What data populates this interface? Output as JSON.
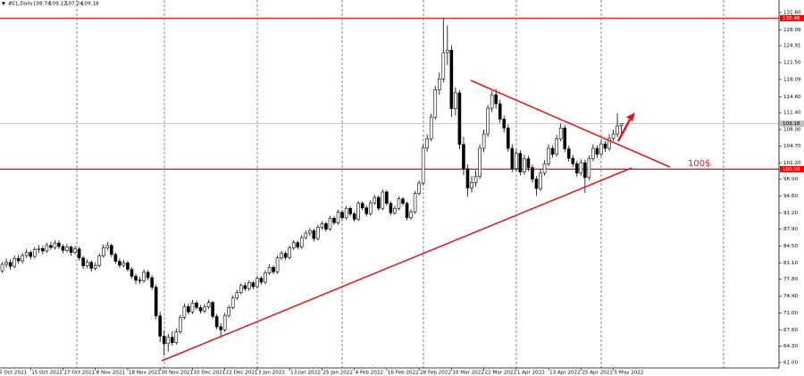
{
  "chart_data": {
    "type": "candlestick",
    "symbol": "#CL,Daily",
    "annotation": "100$",
    "up_color": "#ffffff",
    "down_color": "#000000",
    "wick_color": "#000000",
    "level_color": "#ff0000",
    "price_color": "#c0c0c0",
    "ylim": [
      59.9,
      134.12
    ],
    "yticks": [
      {
        "value": 131.6,
        "label": "131.60"
      },
      {
        "value": 128.09,
        "label": "128.09"
      },
      {
        "value": 124.91,
        "label": "124.91"
      },
      {
        "value": 121.5,
        "label": "121.50"
      },
      {
        "value": 118.09,
        "label": "118.09"
      },
      {
        "value": 114.6,
        "label": "114.60"
      },
      {
        "value": 111.4,
        "label": "111.40"
      },
      {
        "value": 108,
        "label": "108.00"
      },
      {
        "value": 104.7,
        "label": "104.70"
      },
      {
        "value": 101.2,
        "label": "101.20"
      },
      {
        "value": 98,
        "label": "98.00"
      },
      {
        "value": 94.6,
        "label": "94.60"
      },
      {
        "value": 91.2,
        "label": "91.20"
      },
      {
        "value": 87.9,
        "label": "87.90"
      },
      {
        "value": 84.5,
        "label": "84.50"
      },
      {
        "value": 81.1,
        "label": "81.10"
      },
      {
        "value": 77.8,
        "label": "77.80"
      },
      {
        "value": 74.4,
        "label": "74.40"
      },
      {
        "value": 71,
        "label": "71.00"
      },
      {
        "value": 67.6,
        "label": "67.60"
      },
      {
        "value": 64.3,
        "label": "64.30"
      },
      {
        "value": 61,
        "label": "61.00"
      }
    ],
    "levels": [
      {
        "value": 130.46,
        "label": "130.46"
      },
      {
        "value": 100,
        "label": "100.00"
      }
    ],
    "categories": [
      "5 Oct 2021",
      null,
      null,
      null,
      null,
      null,
      null,
      null,
      "15 Oct 2021",
      null,
      null,
      null,
      null,
      null,
      null,
      null,
      "27 Oct 2021",
      null,
      null,
      null,
      null,
      null,
      null,
      null,
      "8 Nov 2021",
      null,
      null,
      null,
      null,
      null,
      null,
      null,
      "18 Nov 2021",
      null,
      null,
      null,
      null,
      null,
      null,
      null,
      "30 Nov 2021",
      null,
      null,
      null,
      null,
      null,
      null,
      null,
      "10 Dec 2021",
      null,
      null,
      null,
      null,
      null,
      null,
      null,
      "22 Dec 2021",
      null,
      null,
      null,
      null,
      null,
      null,
      null,
      "3 Jan 2022",
      null,
      null,
      null,
      null,
      null,
      null,
      null,
      "13 Jan 2022",
      null,
      null,
      null,
      null,
      null,
      null,
      null,
      "25 Jan 2022",
      null,
      null,
      null,
      null,
      null,
      null,
      null,
      "4 Feb 2022",
      null,
      null,
      null,
      null,
      null,
      null,
      null,
      "16 Feb 2022",
      null,
      null,
      null,
      null,
      null,
      null,
      null,
      "28 Feb 2022",
      null,
      null,
      null,
      null,
      null,
      null,
      null,
      "10 Mar 2022",
      null,
      null,
      null,
      null,
      null,
      null,
      null,
      "22 Mar 2022",
      null,
      null,
      null,
      null,
      null,
      null,
      null,
      "1 Apr 2022",
      null,
      null,
      null,
      null,
      null,
      null,
      null,
      "13 Apr 2022",
      null,
      null,
      null,
      null,
      null,
      null,
      null,
      "25 Apr 2022",
      null,
      null,
      null,
      null,
      null,
      null,
      null,
      "5 May 2022",
      null,
      null
    ],
    "ohlc": [
      [
        79,
        80.2,
        78.4,
        79.5
      ],
      [
        79.5,
        81.3,
        79.1,
        80.8
      ],
      [
        80.8,
        82,
        80.2,
        81.2
      ],
      [
        81.2,
        81.8,
        79.7,
        80.4
      ],
      [
        80.4,
        82.6,
        80,
        82
      ],
      [
        82,
        82.7,
        80.9,
        81.5
      ],
      [
        81.5,
        83.1,
        81,
        82.6
      ],
      [
        82.6,
        83.9,
        82.1,
        83.2
      ],
      [
        83.2,
        83.6,
        81.8,
        82.4
      ],
      [
        82.4,
        84.3,
        82,
        83.8
      ],
      [
        83.8,
        84.7,
        83.1,
        84
      ],
      [
        84,
        84.5,
        82.8,
        83.5
      ],
      [
        83.5,
        85.2,
        83.1,
        84.6
      ],
      [
        84.6,
        85.3,
        83.7,
        84.2
      ],
      [
        84.2,
        85.7,
        83.8,
        85.1
      ],
      [
        85.1,
        85.6,
        83.9,
        84.4
      ],
      [
        84.4,
        84.9,
        83,
        83.6
      ],
      [
        83.6,
        84.9,
        83.2,
        84.3
      ],
      [
        84.3,
        84.6,
        82.5,
        83.2
      ],
      [
        83.2,
        84.5,
        82.8,
        83.9
      ],
      [
        83.9,
        84.3,
        81.6,
        82.1
      ],
      [
        82.1,
        82.5,
        79.9,
        80.5
      ],
      [
        80.5,
        81.8,
        80,
        81.2
      ],
      [
        81.2,
        81.6,
        79.3,
        80
      ],
      [
        80,
        81.2,
        79.5,
        80.6
      ],
      [
        80.6,
        83,
        80.2,
        82.5
      ],
      [
        82.5,
        84.8,
        82.1,
        84.1
      ],
      [
        84.1,
        85.3,
        83.6,
        84.6
      ],
      [
        84.6,
        85,
        82.3,
        82.8
      ],
      [
        82.8,
        83.2,
        80.9,
        81.4
      ],
      [
        81.4,
        82,
        80.1,
        80.6
      ],
      [
        80.6,
        81.7,
        80.2,
        81.1
      ],
      [
        81.1,
        81.5,
        79.3,
        79.8
      ],
      [
        79.8,
        80.2,
        77.9,
        78.4
      ],
      [
        78.4,
        78.9,
        76.8,
        77.6
      ],
      [
        77.6,
        78.3,
        76.9,
        77.5
      ],
      [
        77.5,
        79.8,
        77.1,
        79.2
      ],
      [
        79.2,
        79.6,
        77.6,
        78.1
      ],
      [
        78.1,
        78.6,
        75.7,
        76.2
      ],
      [
        76.2,
        76.7,
        69.8,
        70.4
      ],
      [
        70.4,
        71.2,
        65.1,
        66.3
      ],
      [
        66.3,
        67.5,
        62.4,
        64.8
      ],
      [
        64.8,
        66.8,
        63.2,
        66.1
      ],
      [
        66.1,
        67.3,
        64.4,
        65
      ],
      [
        65,
        67.9,
        64.6,
        67.2
      ],
      [
        67.2,
        70.6,
        66.8,
        70.1
      ],
      [
        70.1,
        72.9,
        69.7,
        72.3
      ],
      [
        72.3,
        72.8,
        70.7,
        71.2
      ],
      [
        71.2,
        73.6,
        70.8,
        73
      ],
      [
        73,
        73.5,
        71.6,
        72.1
      ],
      [
        72.1,
        72.6,
        70.9,
        71.4
      ],
      [
        71.4,
        72.8,
        71,
        72.2
      ],
      [
        72.2,
        73.7,
        71.8,
        73.1
      ],
      [
        73.1,
        73.4,
        69.8,
        70.3
      ],
      [
        70.3,
        70.8,
        67.7,
        68.2
      ],
      [
        68.2,
        68.9,
        66,
        67.6
      ],
      [
        67.6,
        71,
        67.2,
        70.5
      ],
      [
        70.5,
        72.6,
        70.1,
        72.1
      ],
      [
        72.1,
        74.5,
        71.7,
        74
      ],
      [
        74,
        75.7,
        73.6,
        75.1
      ],
      [
        75.1,
        77,
        74.7,
        76.5
      ],
      [
        76.5,
        77.1,
        75.4,
        75.9
      ],
      [
        75.9,
        77.6,
        75.5,
        77.1
      ],
      [
        77.1,
        77.5,
        75.8,
        76.3
      ],
      [
        76.3,
        78.5,
        75.9,
        78
      ],
      [
        78,
        78.4,
        76.7,
        77.2
      ],
      [
        77.2,
        79.6,
        76.8,
        79.1
      ],
      [
        79.1,
        80.8,
        78.7,
        80.2
      ],
      [
        80.2,
        80.6,
        78.8,
        79.3
      ],
      [
        79.3,
        82.6,
        78.9,
        82.1
      ],
      [
        82.1,
        83.5,
        81.6,
        83
      ],
      [
        83,
        83.4,
        81.7,
        82.2
      ],
      [
        82.2,
        84.6,
        81.8,
        84.1
      ],
      [
        84.1,
        85.7,
        83.7,
        85.2
      ],
      [
        85.2,
        85.6,
        83.8,
        84.3
      ],
      [
        84.3,
        86.7,
        83.9,
        86.2
      ],
      [
        86.2,
        87.6,
        85.8,
        87.1
      ],
      [
        87.1,
        88.1,
        86.5,
        87.6
      ],
      [
        87.6,
        88,
        85.4,
        86
      ],
      [
        86,
        88.8,
        85.6,
        88.3
      ],
      [
        88.3,
        89.5,
        87.8,
        89
      ],
      [
        89,
        89.4,
        87.4,
        87.9
      ],
      [
        87.9,
        90.6,
        87.5,
        90.1
      ],
      [
        90.1,
        90.5,
        88.7,
        89.2
      ],
      [
        89.2,
        91.8,
        88.8,
        91.3
      ],
      [
        91.3,
        91.7,
        89.7,
        90.2
      ],
      [
        90.2,
        92.6,
        89.8,
        92.1
      ],
      [
        92.1,
        92.5,
        90.5,
        91
      ],
      [
        91,
        91.4,
        89.4,
        89.9
      ],
      [
        89.9,
        93.6,
        89.5,
        93.1
      ],
      [
        93.1,
        93.5,
        91.7,
        92.2
      ],
      [
        92.2,
        92.6,
        90.5,
        91
      ],
      [
        91,
        93.7,
        90.6,
        93.2
      ],
      [
        93.2,
        94.8,
        92.8,
        94.3
      ],
      [
        94.3,
        94.7,
        91.6,
        92.1
      ],
      [
        92.1,
        95.9,
        91.7,
        95.4
      ],
      [
        95.4,
        95.8,
        92.6,
        93.1
      ],
      [
        93.1,
        93.5,
        90.7,
        91.2
      ],
      [
        91.2,
        92.6,
        90.8,
        92.1
      ],
      [
        92.1,
        94.5,
        91.7,
        94
      ],
      [
        94,
        94.4,
        92.6,
        93.1
      ],
      [
        93.1,
        93.5,
        89.7,
        90.2
      ],
      [
        90.2,
        91.9,
        89.8,
        91.4
      ],
      [
        91.4,
        95.6,
        91,
        95.1
      ],
      [
        95.1,
        97.7,
        94.7,
        97.2
      ],
      [
        97.2,
        105,
        96.8,
        104.3
      ],
      [
        104.3,
        107,
        103.5,
        106.1
      ],
      [
        106.1,
        111.2,
        105.6,
        110.5
      ],
      [
        110.5,
        116.8,
        110,
        116
      ],
      [
        116,
        119.5,
        115,
        118.2
      ],
      [
        118.2,
        130.5,
        117.5,
        123.5
      ],
      [
        123.5,
        129,
        121,
        124
      ],
      [
        124,
        125,
        110.5,
        112.2
      ],
      [
        112.2,
        116.5,
        110.8,
        115.4
      ],
      [
        115.4,
        116,
        104,
        105
      ],
      [
        105,
        106.5,
        98.8,
        100.1
      ],
      [
        100.1,
        101,
        94.5,
        96.2
      ],
      [
        96.2,
        98.6,
        95.3,
        97.3
      ],
      [
        97.3,
        99.8,
        96.5,
        98.5
      ],
      [
        98.5,
        105,
        98,
        104.2
      ],
      [
        104.2,
        108,
        103.4,
        107.1
      ],
      [
        107.1,
        113,
        106.5,
        112.3
      ],
      [
        112.3,
        115.8,
        111.5,
        115
      ],
      [
        115,
        116.2,
        112.2,
        113.2
      ],
      [
        113.2,
        114,
        109.3,
        110.1
      ],
      [
        110.1,
        110.8,
        107.4,
        108.3
      ],
      [
        108.3,
        109,
        103.5,
        104.2
      ],
      [
        104.2,
        105,
        99.4,
        100.1
      ],
      [
        100.1,
        104,
        99.6,
        103.2
      ],
      [
        103.2,
        103.8,
        98.7,
        99.4
      ],
      [
        99.4,
        102.9,
        98.9,
        102.1
      ],
      [
        102.1,
        102.7,
        99.6,
        100.3
      ],
      [
        100.3,
        100.9,
        97.3,
        98
      ],
      [
        98,
        98.6,
        94.6,
        96.1
      ],
      [
        96.1,
        99.9,
        95.6,
        99.2
      ],
      [
        99.2,
        101.8,
        98.7,
        101.1
      ],
      [
        101.1,
        105,
        100.6,
        104.2
      ],
      [
        104.2,
        104.8,
        102.3,
        103
      ],
      [
        103,
        106.9,
        102.5,
        106.1
      ],
      [
        106.1,
        109.2,
        105.6,
        108.3
      ],
      [
        108.3,
        108.9,
        103.4,
        104.1
      ],
      [
        104.1,
        104.7,
        101.5,
        102.2
      ],
      [
        102.2,
        102.9,
        100.4,
        101.1
      ],
      [
        101.1,
        101.7,
        98.5,
        99.2
      ],
      [
        99.2,
        102,
        98.7,
        101.3
      ],
      [
        101.3,
        101.9,
        95.2,
        98.3
      ],
      [
        98.3,
        102.8,
        97.8,
        102.1
      ],
      [
        102.1,
        105,
        101.6,
        104.2
      ],
      [
        104.2,
        104.8,
        102.3,
        103
      ],
      [
        103,
        105.9,
        102.5,
        105.1
      ],
      [
        105.1,
        105.7,
        103.5,
        104.2
      ],
      [
        104.2,
        107,
        103.7,
        106.2
      ],
      [
        106.2,
        108,
        105.7,
        107.1
      ],
      [
        107.1,
        111.3,
        106.5,
        108.7
      ],
      [
        108.74,
        109.22,
        107.24,
        109.18
      ]
    ]
  }
}
